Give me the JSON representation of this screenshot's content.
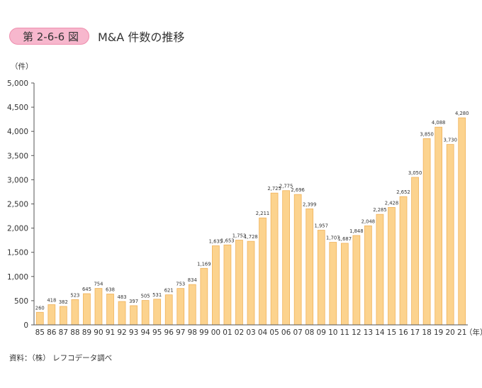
{
  "figure": {
    "badge": "第 2-6-6 図",
    "title": "M&A 件数の推移"
  },
  "source": "資料：（株） レフコデータ調べ",
  "colors": {
    "bar_fill": "#fcd38e",
    "bar_stroke": "#f0b25a",
    "badge_fill": "#f7b7cd",
    "axis": "#555555"
  },
  "chart_data": {
    "type": "bar",
    "title": "M&A 件数の推移",
    "ylabel": "（件）",
    "xlabel": "（年）",
    "ylim": [
      0,
      5000
    ],
    "yticks": [
      0,
      500,
      1000,
      1500,
      2000,
      2500,
      3000,
      3500,
      4000,
      4500,
      5000
    ],
    "ytick_labels": [
      "0",
      "500",
      "1,000",
      "1,500",
      "2,000",
      "2,500",
      "3,000",
      "3,500",
      "4,000",
      "4,500",
      "5,000"
    ],
    "grid": false,
    "legend": "none",
    "categories": [
      "85",
      "86",
      "87",
      "88",
      "89",
      "90",
      "91",
      "92",
      "93",
      "94",
      "95",
      "96",
      "97",
      "98",
      "99",
      "00",
      "01",
      "02",
      "03",
      "04",
      "05",
      "06",
      "07",
      "08",
      "09",
      "10",
      "11",
      "12",
      "13",
      "14",
      "15",
      "16",
      "17",
      "18",
      "19",
      "20",
      "21"
    ],
    "values": [
      260,
      418,
      382,
      523,
      645,
      754,
      638,
      483,
      397,
      505,
      531,
      621,
      753,
      834,
      1169,
      1635,
      1653,
      1752,
      1728,
      2211,
      2725,
      2775,
      2696,
      2399,
      1957,
      1707,
      1687,
      1848,
      2048,
      2285,
      2428,
      2652,
      3050,
      3850,
      4088,
      3730,
      4280
    ],
    "value_labels": [
      "260",
      "418",
      "382",
      "523",
      "645",
      "754",
      "638",
      "483",
      "397",
      "505",
      "531",
      "621",
      "753",
      "834",
      "1,169",
      "1,635",
      "1,653",
      "1,752",
      "1,728",
      "2,211",
      "2,725",
      "2,775",
      "2,696",
      "2,399",
      "1,957",
      "1,707",
      "1,687",
      "1,848",
      "2,048",
      "2,285",
      "2,428",
      "2,652",
      "3,050",
      "3,850",
      "4,088",
      "3,730",
      "4,280"
    ]
  }
}
